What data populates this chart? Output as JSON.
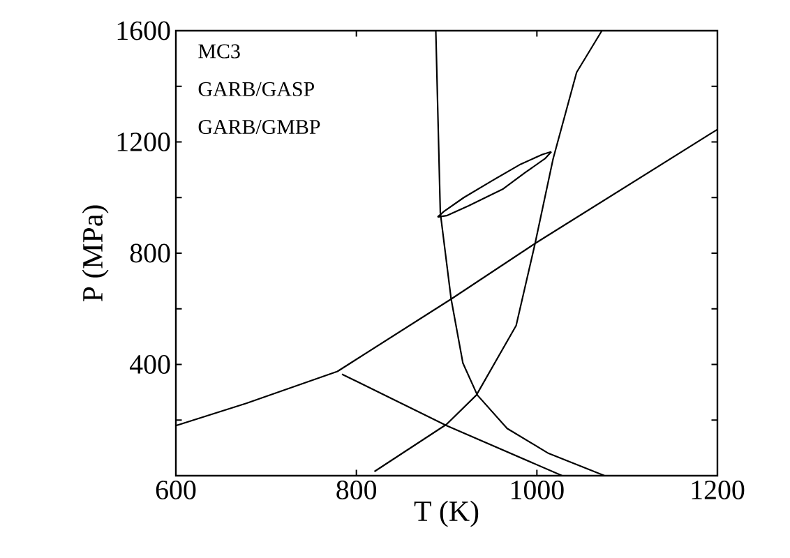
{
  "chart_data": {
    "type": "line",
    "xlabel": "T (K)",
    "ylabel": "P (MPa)",
    "annotations": [
      "MC3",
      "GARB/GASP",
      "GARB/GMBP"
    ],
    "xlim": [
      600,
      1200
    ],
    "ylim": [
      0,
      1600
    ],
    "xticks": [
      600,
      800,
      1000,
      1200
    ],
    "yticks": [
      {
        "value": 200,
        "label": null
      },
      400,
      {
        "value": 600,
        "label": null
      },
      800,
      {
        "value": 1000,
        "label": null
      },
      1200,
      {
        "value": 1400,
        "label": null
      },
      1600
    ],
    "grid": false,
    "marker": "none",
    "line_style": "solid",
    "series": [
      {
        "color": "#000000",
        "x": [
          600,
          678,
          779,
          905,
          998,
          1200
        ],
        "values": [
          180,
          260,
          375,
          635,
          835,
          1245
        ]
      },
      {
        "color": "#000000",
        "x": [
          784,
          900,
          1028
        ],
        "values": [
          365,
          180,
          0
        ]
      },
      {
        "color": "#000000",
        "x": [
          888,
          893,
          905,
          918,
          934,
          967,
          1013,
          1075
        ],
        "values": [
          1600,
          945,
          635,
          405,
          290,
          170,
          80,
          0
        ]
      },
      {
        "color": "#000000",
        "x": [
          820,
          900,
          933,
          977,
          998,
          1018,
          1044,
          1072
        ],
        "values": [
          15,
          185,
          290,
          540,
          835,
          1140,
          1450,
          1600
        ]
      },
      {
        "color": "#000000",
        "x": [
          890,
          897,
          919,
          950,
          982,
          1006,
          1016
        ],
        "values": [
          930,
          950,
          1000,
          1060,
          1120,
          1155,
          1165
        ]
      },
      {
        "color": "#000000",
        "x": [
          890,
          900,
          924,
          962,
          987,
          1009,
          1016
        ],
        "values": [
          930,
          935,
          970,
          1030,
          1090,
          1140,
          1165
        ]
      }
    ]
  }
}
